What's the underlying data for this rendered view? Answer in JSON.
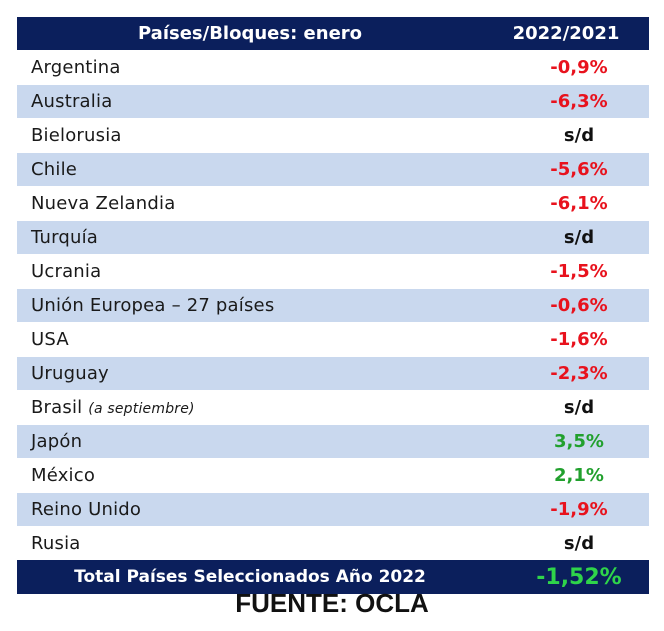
{
  "table": {
    "headers": [
      "Países/Bloques: enero",
      "2022/2021"
    ],
    "rows": [
      {
        "country": "Argentina",
        "note": "",
        "value": "-0,9%",
        "trend": "neg"
      },
      {
        "country": "Australia",
        "note": "",
        "value": "-6,3%",
        "trend": "neg"
      },
      {
        "country": "Bielorusia",
        "note": "",
        "value": "s/d",
        "trend": "nd"
      },
      {
        "country": "Chile",
        "note": "",
        "value": "-5,6%",
        "trend": "neg"
      },
      {
        "country": "Nueva Zelandia",
        "note": "",
        "value": "-6,1%",
        "trend": "neg"
      },
      {
        "country": "Turquía",
        "note": "",
        "value": "s/d",
        "trend": "nd"
      },
      {
        "country": "Ucrania",
        "note": "",
        "value": "-1,5%",
        "trend": "neg"
      },
      {
        "country": "Unión Europea – 27 países",
        "note": "",
        "value": "-0,6%",
        "trend": "neg"
      },
      {
        "country": "USA",
        "note": "",
        "value": "-1,6%",
        "trend": "neg"
      },
      {
        "country": "Uruguay",
        "note": "",
        "value": "-2,3%",
        "trend": "neg"
      },
      {
        "country": "Brasil",
        "note": "(a septiembre)",
        "value": "s/d",
        "trend": "nd"
      },
      {
        "country": "Japón",
        "note": "",
        "value": "3,5%",
        "trend": "pos"
      },
      {
        "country": "México",
        "note": "",
        "value": "2,1%",
        "trend": "pos"
      },
      {
        "country": "Reino Unido",
        "note": "",
        "value": "-1,9%",
        "trend": "neg"
      },
      {
        "country": "Rusia",
        "note": "",
        "value": "s/d",
        "trend": "nd"
      }
    ],
    "total": {
      "label": "Total Países Seleccionados Año 2022",
      "value": "-1,52%"
    }
  },
  "source": "FUENTE: OCLA",
  "colors": {
    "header_bg": "#0b1f5c",
    "row_stripe": "#c9d8ee",
    "negative": "#e8121d",
    "positive": "#21a02d",
    "total_value": "#2fd44a"
  }
}
